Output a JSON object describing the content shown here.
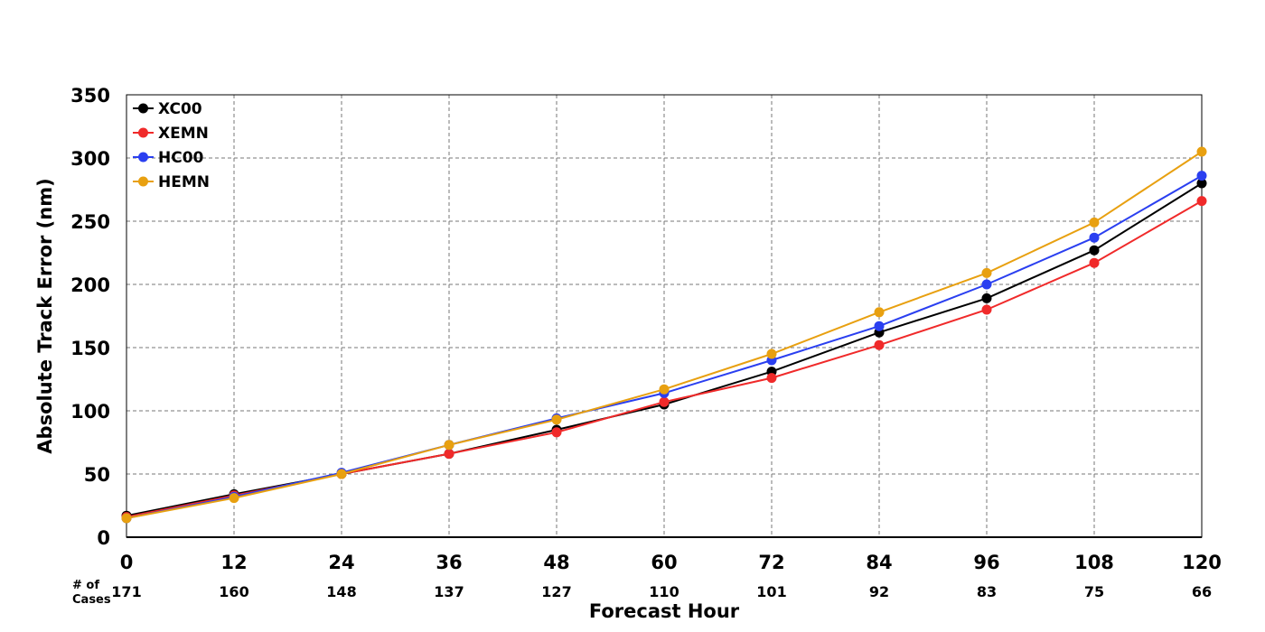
{
  "chart_data": {
    "type": "line",
    "title": "",
    "xlabel": "Forecast Hour",
    "ylabel": "Absolute Track Error (nm)",
    "x": [
      0,
      12,
      24,
      36,
      48,
      60,
      72,
      84,
      96,
      108,
      120
    ],
    "xlim": [
      0,
      120
    ],
    "ylim": [
      0,
      350
    ],
    "yticks": [
      0,
      50,
      100,
      150,
      200,
      250,
      300,
      350
    ],
    "grid": true,
    "legend_position": "top-left",
    "cases_label_line1": "# of",
    "cases_label_line2": "Cases",
    "cases": [
      171,
      160,
      148,
      137,
      127,
      110,
      101,
      92,
      83,
      75,
      66
    ],
    "series": [
      {
        "name": "XC00",
        "color": "#000000",
        "values": [
          17,
          34,
          50,
          66,
          85,
          105,
          131,
          162,
          189,
          227,
          280
        ]
      },
      {
        "name": "XEMN",
        "color": "#f02a2a",
        "values": [
          16,
          33,
          50,
          66,
          83,
          107,
          126,
          152,
          180,
          217,
          266
        ]
      },
      {
        "name": "HC00",
        "color": "#2a3ff0",
        "values": [
          15,
          32,
          51,
          73,
          94,
          114,
          140,
          167,
          200,
          237,
          286
        ]
      },
      {
        "name": "HEMN",
        "color": "#e8a010",
        "values": [
          15,
          31,
          50,
          73,
          93,
          117,
          145,
          178,
          209,
          249,
          305
        ]
      }
    ]
  }
}
